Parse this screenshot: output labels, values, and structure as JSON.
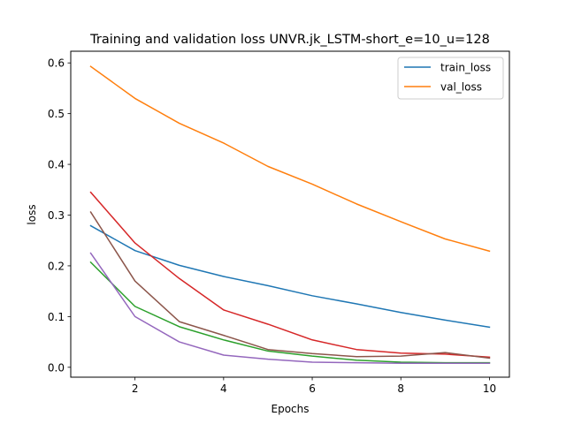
{
  "chart_data": {
    "type": "line",
    "title": "Training and validation loss UNVR.jk_LSTM-short_e=10_u=128",
    "xlabel": "Epochs",
    "ylabel": "loss",
    "xlim": [
      0.55,
      10.45
    ],
    "ylim": [
      -0.0195,
      0.623
    ],
    "xticks": [
      2,
      4,
      6,
      8,
      10
    ],
    "yticks": [
      0.0,
      0.1,
      0.2,
      0.3,
      0.4,
      0.5,
      0.6
    ],
    "ytick_labels": [
      "0.0",
      "0.1",
      "0.2",
      "0.3",
      "0.4",
      "0.5",
      "0.6"
    ],
    "grid": false,
    "legend_position": "top-right",
    "x": [
      1,
      2,
      3,
      4,
      5,
      6,
      7,
      8,
      9,
      10
    ],
    "series": [
      {
        "name": "train_loss",
        "color": "#1f77b4",
        "values": [
          0.279,
          0.23,
          0.201,
          0.179,
          0.161,
          0.141,
          0.125,
          0.108,
          0.093,
          0.079
        ]
      },
      {
        "name": "val_loss",
        "color": "#ff7f0e",
        "values": [
          0.593,
          0.53,
          0.481,
          0.442,
          0.396,
          0.361,
          0.322,
          0.287,
          0.253,
          0.229
        ]
      },
      {
        "color": "#2ca02c",
        "values": [
          0.207,
          0.12,
          0.08,
          0.054,
          0.032,
          0.022,
          0.014,
          0.01,
          0.009,
          0.009
        ]
      },
      {
        "color": "#d62728",
        "values": [
          0.345,
          0.245,
          0.175,
          0.113,
          0.085,
          0.054,
          0.035,
          0.028,
          0.026,
          0.02
        ]
      },
      {
        "color": "#9467bd",
        "values": [
          0.225,
          0.1,
          0.05,
          0.024,
          0.016,
          0.01,
          0.009,
          0.008,
          0.008,
          0.008
        ]
      },
      {
        "color": "#8c564b",
        "values": [
          0.306,
          0.17,
          0.09,
          0.063,
          0.035,
          0.027,
          0.021,
          0.022,
          0.029,
          0.018
        ]
      }
    ]
  }
}
